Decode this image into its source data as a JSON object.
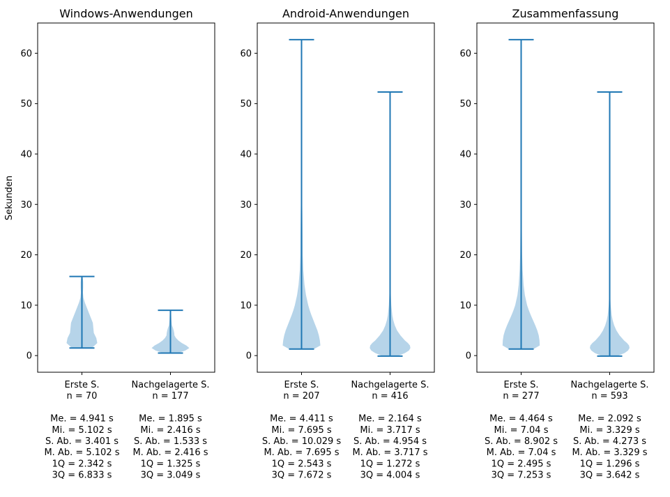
{
  "figure": {
    "shared_ylabel": "Sekunden",
    "violin_color": "#b6d4e9",
    "line_color": "#1f77b4"
  },
  "chart_data": [
    {
      "type": "violin",
      "title": "Windows-Anwendungen",
      "ylabel": "Sekunden",
      "ylim": [
        -3.3,
        66
      ],
      "yticks": [
        0,
        10,
        20,
        30,
        40,
        50,
        60
      ],
      "grid": false,
      "groups": [
        {
          "label_lines": [
            "Erste S.",
            "n = 70"
          ],
          "stats_lines": [
            "Me. = 4.941 s",
            "Mi. = 5.102 s",
            "S. Ab. = 3.401 s",
            "M. Ab. = 5.102 s",
            "1Q = 2.342 s",
            "3Q = 6.833 s"
          ],
          "min": 1.5,
          "max": 15.7,
          "density": [
            [
              1.5,
              0.4
            ],
            [
              2.5,
              0.62
            ],
            [
              3.5,
              0.58
            ],
            [
              4.5,
              0.48
            ],
            [
              5.5,
              0.46
            ],
            [
              6.5,
              0.44
            ],
            [
              7.5,
              0.36
            ],
            [
              8.5,
              0.28
            ],
            [
              9.5,
              0.2
            ],
            [
              10.5,
              0.12
            ],
            [
              11.5,
              0.06
            ],
            [
              12.5,
              0.04
            ],
            [
              13.5,
              0.05
            ],
            [
              14.5,
              0.05
            ],
            [
              15.2,
              0.04
            ],
            [
              15.7,
              0.02
            ]
          ]
        },
        {
          "label_lines": [
            "Nachgelagerte S.",
            "n = 177"
          ],
          "stats_lines": [
            "Me. = 1.895 s",
            "Mi. = 2.416 s",
            "S. Ab. = 1.533 s",
            "M. Ab. = 2.416 s",
            "1Q = 1.325 s",
            "3Q = 3.049 s"
          ],
          "min": 0.5,
          "max": 9.0,
          "density": [
            [
              0.5,
              0.3
            ],
            [
              1.0,
              0.6
            ],
            [
              1.5,
              0.76
            ],
            [
              2.0,
              0.64
            ],
            [
              2.5,
              0.46
            ],
            [
              3.0,
              0.32
            ],
            [
              3.5,
              0.22
            ],
            [
              4.0,
              0.16
            ],
            [
              4.5,
              0.15
            ],
            [
              5.0,
              0.13
            ],
            [
              5.5,
              0.1
            ],
            [
              6.0,
              0.06
            ],
            [
              7.0,
              0.04
            ],
            [
              8.0,
              0.03
            ],
            [
              9.0,
              0.02
            ]
          ]
        }
      ]
    },
    {
      "type": "violin",
      "title": "Android-Anwendungen",
      "ylim": [
        -3.3,
        66
      ],
      "yticks": [
        0,
        10,
        20,
        30,
        40,
        50,
        60
      ],
      "grid": false,
      "groups": [
        {
          "label_lines": [
            "Erste S.",
            "n = 207"
          ],
          "stats_lines": [
            "Me. = 4.411 s",
            "Mi. = 7.695 s",
            "S. Ab. = 10.029 s",
            "M. Ab. = 7.695 s",
            "1Q = 2.543 s",
            "3Q = 7.672 s"
          ],
          "min": 1.3,
          "max": 62.7,
          "density": [
            [
              1.3,
              0.5
            ],
            [
              2.0,
              0.76
            ],
            [
              3.0,
              0.74
            ],
            [
              4.0,
              0.7
            ],
            [
              5.0,
              0.64
            ],
            [
              6.0,
              0.56
            ],
            [
              7.0,
              0.48
            ],
            [
              8.0,
              0.4
            ],
            [
              9.0,
              0.33
            ],
            [
              10.0,
              0.27
            ],
            [
              12.0,
              0.18
            ],
            [
              14.0,
              0.12
            ],
            [
              17.0,
              0.07
            ],
            [
              20.0,
              0.05
            ],
            [
              24.0,
              0.045
            ],
            [
              28.0,
              0.035
            ],
            [
              32.0,
              0.02
            ],
            [
              40.0,
              0.01
            ],
            [
              50.0,
              0.006
            ],
            [
              62.7,
              0.004
            ]
          ]
        },
        {
          "label_lines": [
            "Nachgelagerte S.",
            "n = 416"
          ],
          "stats_lines": [
            "Me. = 2.164 s",
            "Mi. = 3.717 s",
            "S. Ab. = 4.954 s",
            "M. Ab. = 3.717 s",
            "1Q = 1.272 s",
            "3Q = 4.004 s"
          ],
          "min": -0.1,
          "max": 52.3,
          "density": [
            [
              -0.1,
              0.3
            ],
            [
              0.5,
              0.6
            ],
            [
              1.0,
              0.76
            ],
            [
              1.5,
              0.82
            ],
            [
              2.0,
              0.8
            ],
            [
              2.5,
              0.72
            ],
            [
              3.0,
              0.6
            ],
            [
              4.0,
              0.42
            ],
            [
              5.0,
              0.28
            ],
            [
              6.0,
              0.19
            ],
            [
              7.0,
              0.13
            ],
            [
              8.0,
              0.09
            ],
            [
              10.0,
              0.05
            ],
            [
              12.0,
              0.03
            ],
            [
              15.0,
              0.015
            ],
            [
              20.0,
              0.008
            ],
            [
              30.0,
              0.005
            ],
            [
              52.3,
              0.003
            ]
          ]
        }
      ]
    },
    {
      "type": "violin",
      "title": "Zusammenfassung",
      "ylim": [
        -3.3,
        66
      ],
      "yticks": [
        0,
        10,
        20,
        30,
        40,
        50,
        60
      ],
      "grid": false,
      "groups": [
        {
          "label_lines": [
            "Erste S.",
            "n = 277"
          ],
          "stats_lines": [
            "Me. = 4.464 s",
            "Mi. = 7.04 s",
            "S. Ab. = 8.902 s",
            "M. Ab. = 7.04 s",
            "1Q = 2.495 s",
            "3Q = 7.253 s"
          ],
          "min": 1.3,
          "max": 62.7,
          "density": [
            [
              1.3,
              0.5
            ],
            [
              2.0,
              0.75
            ],
            [
              3.0,
              0.74
            ],
            [
              4.0,
              0.71
            ],
            [
              5.0,
              0.65
            ],
            [
              6.0,
              0.57
            ],
            [
              7.0,
              0.48
            ],
            [
              8.0,
              0.39
            ],
            [
              9.0,
              0.31
            ],
            [
              10.0,
              0.24
            ],
            [
              12.0,
              0.15
            ],
            [
              14.0,
              0.1
            ],
            [
              17.0,
              0.06
            ],
            [
              20.0,
              0.04
            ],
            [
              24.0,
              0.03
            ],
            [
              28.0,
              0.02
            ],
            [
              32.0,
              0.012
            ],
            [
              40.0,
              0.007
            ],
            [
              50.0,
              0.005
            ],
            [
              62.7,
              0.004
            ]
          ]
        },
        {
          "label_lines": [
            "Nachgelagerte S.",
            "n = 593"
          ],
          "stats_lines": [
            "Me. = 2.092 s",
            "Mi. = 3.329 s",
            "S. Ab. = 4.273 s",
            "M. Ab. = 3.329 s",
            "1Q = 1.296 s",
            "3Q = 3.642 s"
          ],
          "min": -0.1,
          "max": 52.3,
          "density": [
            [
              -0.1,
              0.3
            ],
            [
              0.5,
              0.6
            ],
            [
              1.0,
              0.74
            ],
            [
              1.5,
              0.8
            ],
            [
              2.0,
              0.78
            ],
            [
              2.5,
              0.7
            ],
            [
              3.0,
              0.58
            ],
            [
              4.0,
              0.4
            ],
            [
              5.0,
              0.27
            ],
            [
              6.0,
              0.18
            ],
            [
              7.0,
              0.12
            ],
            [
              8.0,
              0.08
            ],
            [
              10.0,
              0.04
            ],
            [
              12.0,
              0.02
            ],
            [
              15.0,
              0.01
            ],
            [
              20.0,
              0.006
            ],
            [
              30.0,
              0.004
            ],
            [
              52.3,
              0.003
            ]
          ]
        }
      ]
    }
  ]
}
